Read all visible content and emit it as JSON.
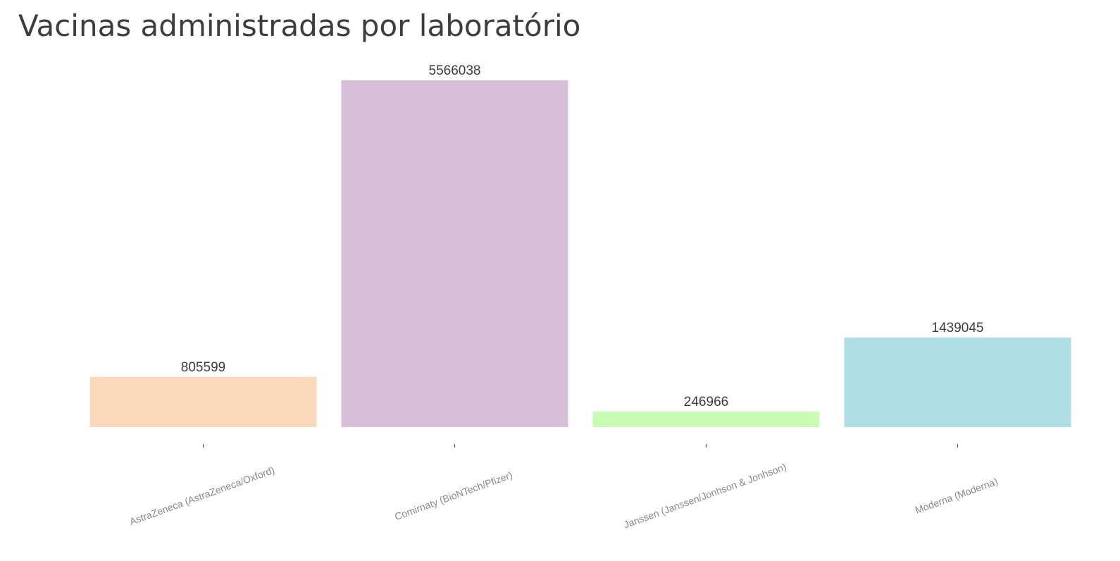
{
  "chart_data": {
    "type": "bar",
    "title": "Vacinas administradas por laboratório",
    "xlabel": "",
    "ylabel": "",
    "categories": [
      "AstraZeneca (AstraZeneca/Oxford)",
      "Comirnaty (BioNTech/Pfizer)",
      "Janssen (Janssen/Jonhson & Jonhson)",
      "Moderna (Moderna)"
    ],
    "values": [
      805599,
      5566038,
      246966,
      1439045
    ],
    "value_labels": [
      "805599",
      "5566038",
      "246966",
      "1439045"
    ],
    "colors": [
      "#fdd9bb",
      "#d7bfd7",
      "#c8fcb3",
      "#b0dfe5"
    ],
    "ylim": [
      0,
      5566038
    ],
    "grid": false,
    "legend": "none"
  }
}
